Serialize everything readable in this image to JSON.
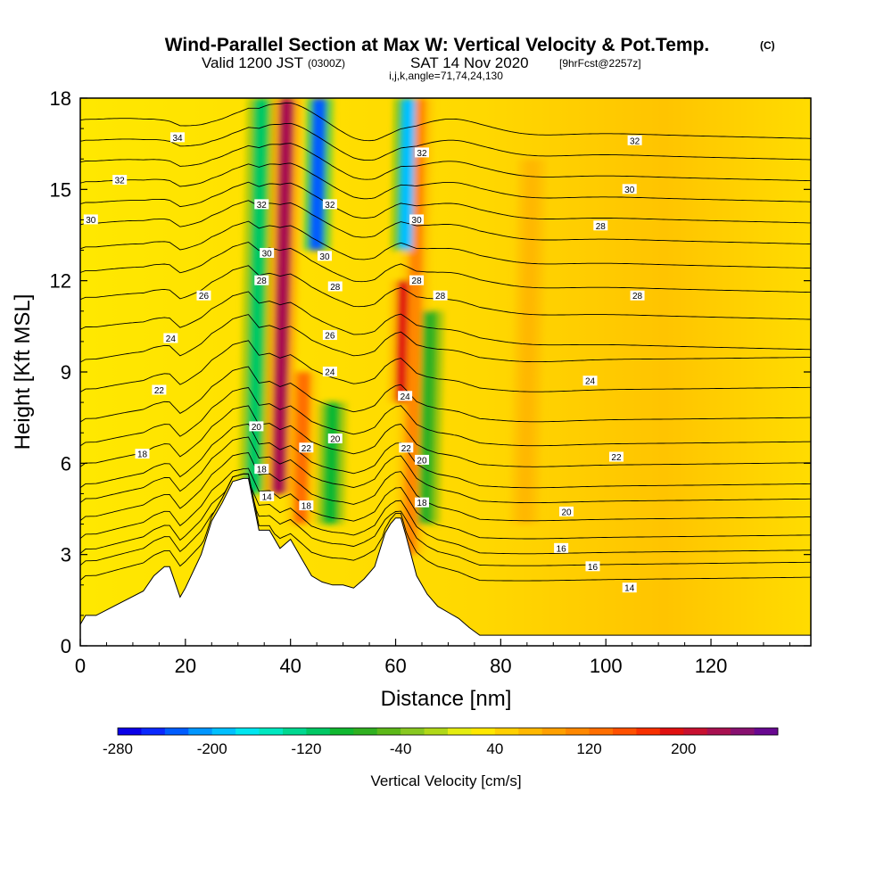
{
  "header": {
    "title": "Wind-Parallel Section at Max W: Vertical Velocity & Pot.Temp.",
    "title_mark": "(C)",
    "valid_prefix": "Valid 1200 JST",
    "valid_utc": "(0300Z)",
    "valid_date": "SAT 14 Nov 2020",
    "valid_fcst": "[9hrFcst@2257z]",
    "indices": "i,j,k,angle=71,74,24,130"
  },
  "chart_data": {
    "type": "heatmap",
    "xlabel": "Distance [nm]",
    "ylabel": "Height [Kft MSL]",
    "xlim": [
      0,
      139
    ],
    "ylim": [
      0,
      18
    ],
    "x_ticks": [
      0,
      20,
      40,
      60,
      80,
      100,
      120
    ],
    "y_ticks": [
      0,
      3,
      6,
      9,
      12,
      15,
      18
    ],
    "colorbar": {
      "label": "Vertical Velocity [cm/s]",
      "tick_labels": [
        "-280",
        "-200",
        "-120",
        "-40",
        "40",
        "120",
        "200"
      ],
      "range": [
        -280,
        280
      ],
      "step": 20,
      "colors": [
        "#0a00e8",
        "#0a28ff",
        "#005cff",
        "#0096ff",
        "#00c0ff",
        "#00e6f0",
        "#00e8c0",
        "#00d890",
        "#00c864",
        "#10b830",
        "#30b020",
        "#5cb818",
        "#88c820",
        "#b0d818",
        "#e4ec10",
        "#ffe800",
        "#ffd000",
        "#ffb800",
        "#ffa000",
        "#ff8800",
        "#ff6e00",
        "#ff5000",
        "#f83000",
        "#e01010",
        "#c81030",
        "#a81050",
        "#881070",
        "#680890"
      ]
    },
    "terrain_profile": {
      "distance_nm": [
        0,
        1,
        3,
        12,
        14,
        16,
        17,
        18,
        19,
        20,
        23,
        25,
        27,
        29,
        31,
        32,
        34,
        36,
        38,
        40,
        42,
        44,
        46,
        48,
        50,
        52,
        54,
        56,
        58,
        59,
        60,
        61,
        62,
        64,
        66,
        68,
        70,
        72,
        74,
        76,
        80,
        139
      ],
      "height_kft": [
        0.7,
        1.0,
        1.0,
        1.8,
        2.3,
        2.6,
        2.6,
        2.1,
        1.6,
        1.9,
        3.0,
        4.1,
        4.7,
        5.4,
        5.5,
        5.5,
        3.8,
        3.8,
        3.2,
        3.5,
        2.9,
        2.3,
        2.1,
        2.0,
        2.0,
        1.9,
        2.2,
        2.6,
        3.7,
        4.0,
        4.2,
        4.2,
        3.6,
        2.3,
        1.7,
        1.3,
        1.1,
        0.9,
        0.6,
        0.35,
        0.35,
        0.35
      ]
    },
    "updraft_zones": [
      {
        "distance_nm": 39.3,
        "height_kft": [
          5,
          18
        ],
        "w_cm_s": 220
      },
      {
        "distance_nm": 42.5,
        "height_kft": [
          4,
          9
        ],
        "w_cm_s": 120
      },
      {
        "distance_nm": 61.8,
        "height_kft": [
          8,
          12
        ],
        "w_cm_s": 180
      },
      {
        "distance_nm": 64.5,
        "height_kft": [
          3,
          18
        ],
        "w_cm_s": 110
      },
      {
        "distance_nm": 86,
        "height_kft": [
          4,
          16
        ],
        "w_cm_s": 60
      }
    ],
    "downdraft_zones": [
      {
        "distance_nm": 34.5,
        "height_kft": [
          5,
          18
        ],
        "w_cm_s": -110
      },
      {
        "distance_nm": 45.5,
        "height_kft": [
          13,
          18
        ],
        "w_cm_s": -230
      },
      {
        "distance_nm": 62.5,
        "height_kft": [
          13,
          18
        ],
        "w_cm_s": -190
      },
      {
        "distance_nm": 48,
        "height_kft": [
          4,
          8
        ],
        "w_cm_s": -100
      },
      {
        "distance_nm": 66.5,
        "height_kft": [
          4,
          11
        ],
        "w_cm_s": -70
      }
    ],
    "theta_contours": [
      {
        "level": 14,
        "base_height_kft": 1.8
      },
      {
        "level": 15,
        "base_height_kft": 2.3
      },
      {
        "level": 16,
        "base_height_kft": 2.7
      },
      {
        "level": 17,
        "base_height_kft": 3.2
      },
      {
        "level": 18,
        "base_height_kft": 3.8
      },
      {
        "level": 19,
        "base_height_kft": 4.4
      },
      {
        "level": 20,
        "base_height_kft": 4.9
      },
      {
        "level": 21,
        "base_height_kft": 5.6
      },
      {
        "level": 22,
        "base_height_kft": 6.3
      },
      {
        "level": 23,
        "base_height_kft": 7.1
      },
      {
        "level": 24,
        "base_height_kft": 8.1
      },
      {
        "level": 25,
        "base_height_kft": 9.1
      },
      {
        "level": 26,
        "base_height_kft": 10.2
      },
      {
        "level": 27,
        "base_height_kft": 11.2
      },
      {
        "level": 28,
        "base_height_kft": 12.1
      },
      {
        "level": 29,
        "base_height_kft": 12.9
      },
      {
        "level": 30,
        "base_height_kft": 13.7
      },
      {
        "level": 31,
        "base_height_kft": 14.4
      },
      {
        "level": 32,
        "base_height_kft": 15.1
      },
      {
        "level": 33,
        "base_height_kft": 15.8
      },
      {
        "level": 34,
        "base_height_kft": 16.5
      },
      {
        "level": 35,
        "base_height_kft": 17.2
      }
    ],
    "contour_labels": [
      {
        "text": "34",
        "x": 18.5,
        "y": 16.7
      },
      {
        "text": "32",
        "x": 7.5,
        "y": 15.3
      },
      {
        "text": "30",
        "x": 2.0,
        "y": 14.0
      },
      {
        "text": "26",
        "x": 23.5,
        "y": 11.5
      },
      {
        "text": "24",
        "x": 17.2,
        "y": 10.1
      },
      {
        "text": "22",
        "x": 15.0,
        "y": 8.4
      },
      {
        "text": "18",
        "x": 11.8,
        "y": 6.3
      },
      {
        "text": "20",
        "x": 33.5,
        "y": 7.2
      },
      {
        "text": "18",
        "x": 34.5,
        "y": 5.8
      },
      {
        "text": "14",
        "x": 35.5,
        "y": 4.9
      },
      {
        "text": "32",
        "x": 34.5,
        "y": 14.5
      },
      {
        "text": "30",
        "x": 35.5,
        "y": 12.9
      },
      {
        "text": "28",
        "x": 34.5,
        "y": 12.0
      },
      {
        "text": "22",
        "x": 43.0,
        "y": 6.5
      },
      {
        "text": "18",
        "x": 43.0,
        "y": 4.6
      },
      {
        "text": "32",
        "x": 47.5,
        "y": 14.5
      },
      {
        "text": "30",
        "x": 46.5,
        "y": 12.8
      },
      {
        "text": "28",
        "x": 48.5,
        "y": 11.8
      },
      {
        "text": "26",
        "x": 47.5,
        "y": 10.2
      },
      {
        "text": "24",
        "x": 47.5,
        "y": 9.0
      },
      {
        "text": "20",
        "x": 48.5,
        "y": 6.8
      },
      {
        "text": "32",
        "x": 65.0,
        "y": 16.2
      },
      {
        "text": "30",
        "x": 64.0,
        "y": 14.0
      },
      {
        "text": "28",
        "x": 64.0,
        "y": 12.0
      },
      {
        "text": "28",
        "x": 68.5,
        "y": 11.5
      },
      {
        "text": "24",
        "x": 61.8,
        "y": 8.2
      },
      {
        "text": "22",
        "x": 62.0,
        "y": 6.5
      },
      {
        "text": "20",
        "x": 65.0,
        "y": 6.1
      },
      {
        "text": "18",
        "x": 65.0,
        "y": 4.7
      },
      {
        "text": "32",
        "x": 105.5,
        "y": 16.6
      },
      {
        "text": "30",
        "x": 104.5,
        "y": 15.0
      },
      {
        "text": "28",
        "x": 99.0,
        "y": 13.8
      },
      {
        "text": "28",
        "x": 106.0,
        "y": 11.5
      },
      {
        "text": "24",
        "x": 97.0,
        "y": 8.7
      },
      {
        "text": "22",
        "x": 102.0,
        "y": 6.2
      },
      {
        "text": "20",
        "x": 92.5,
        "y": 4.4
      },
      {
        "text": "16",
        "x": 91.5,
        "y": 3.2
      },
      {
        "text": "16",
        "x": 97.5,
        "y": 2.6
      },
      {
        "text": "14",
        "x": 104.5,
        "y": 1.9
      }
    ]
  }
}
